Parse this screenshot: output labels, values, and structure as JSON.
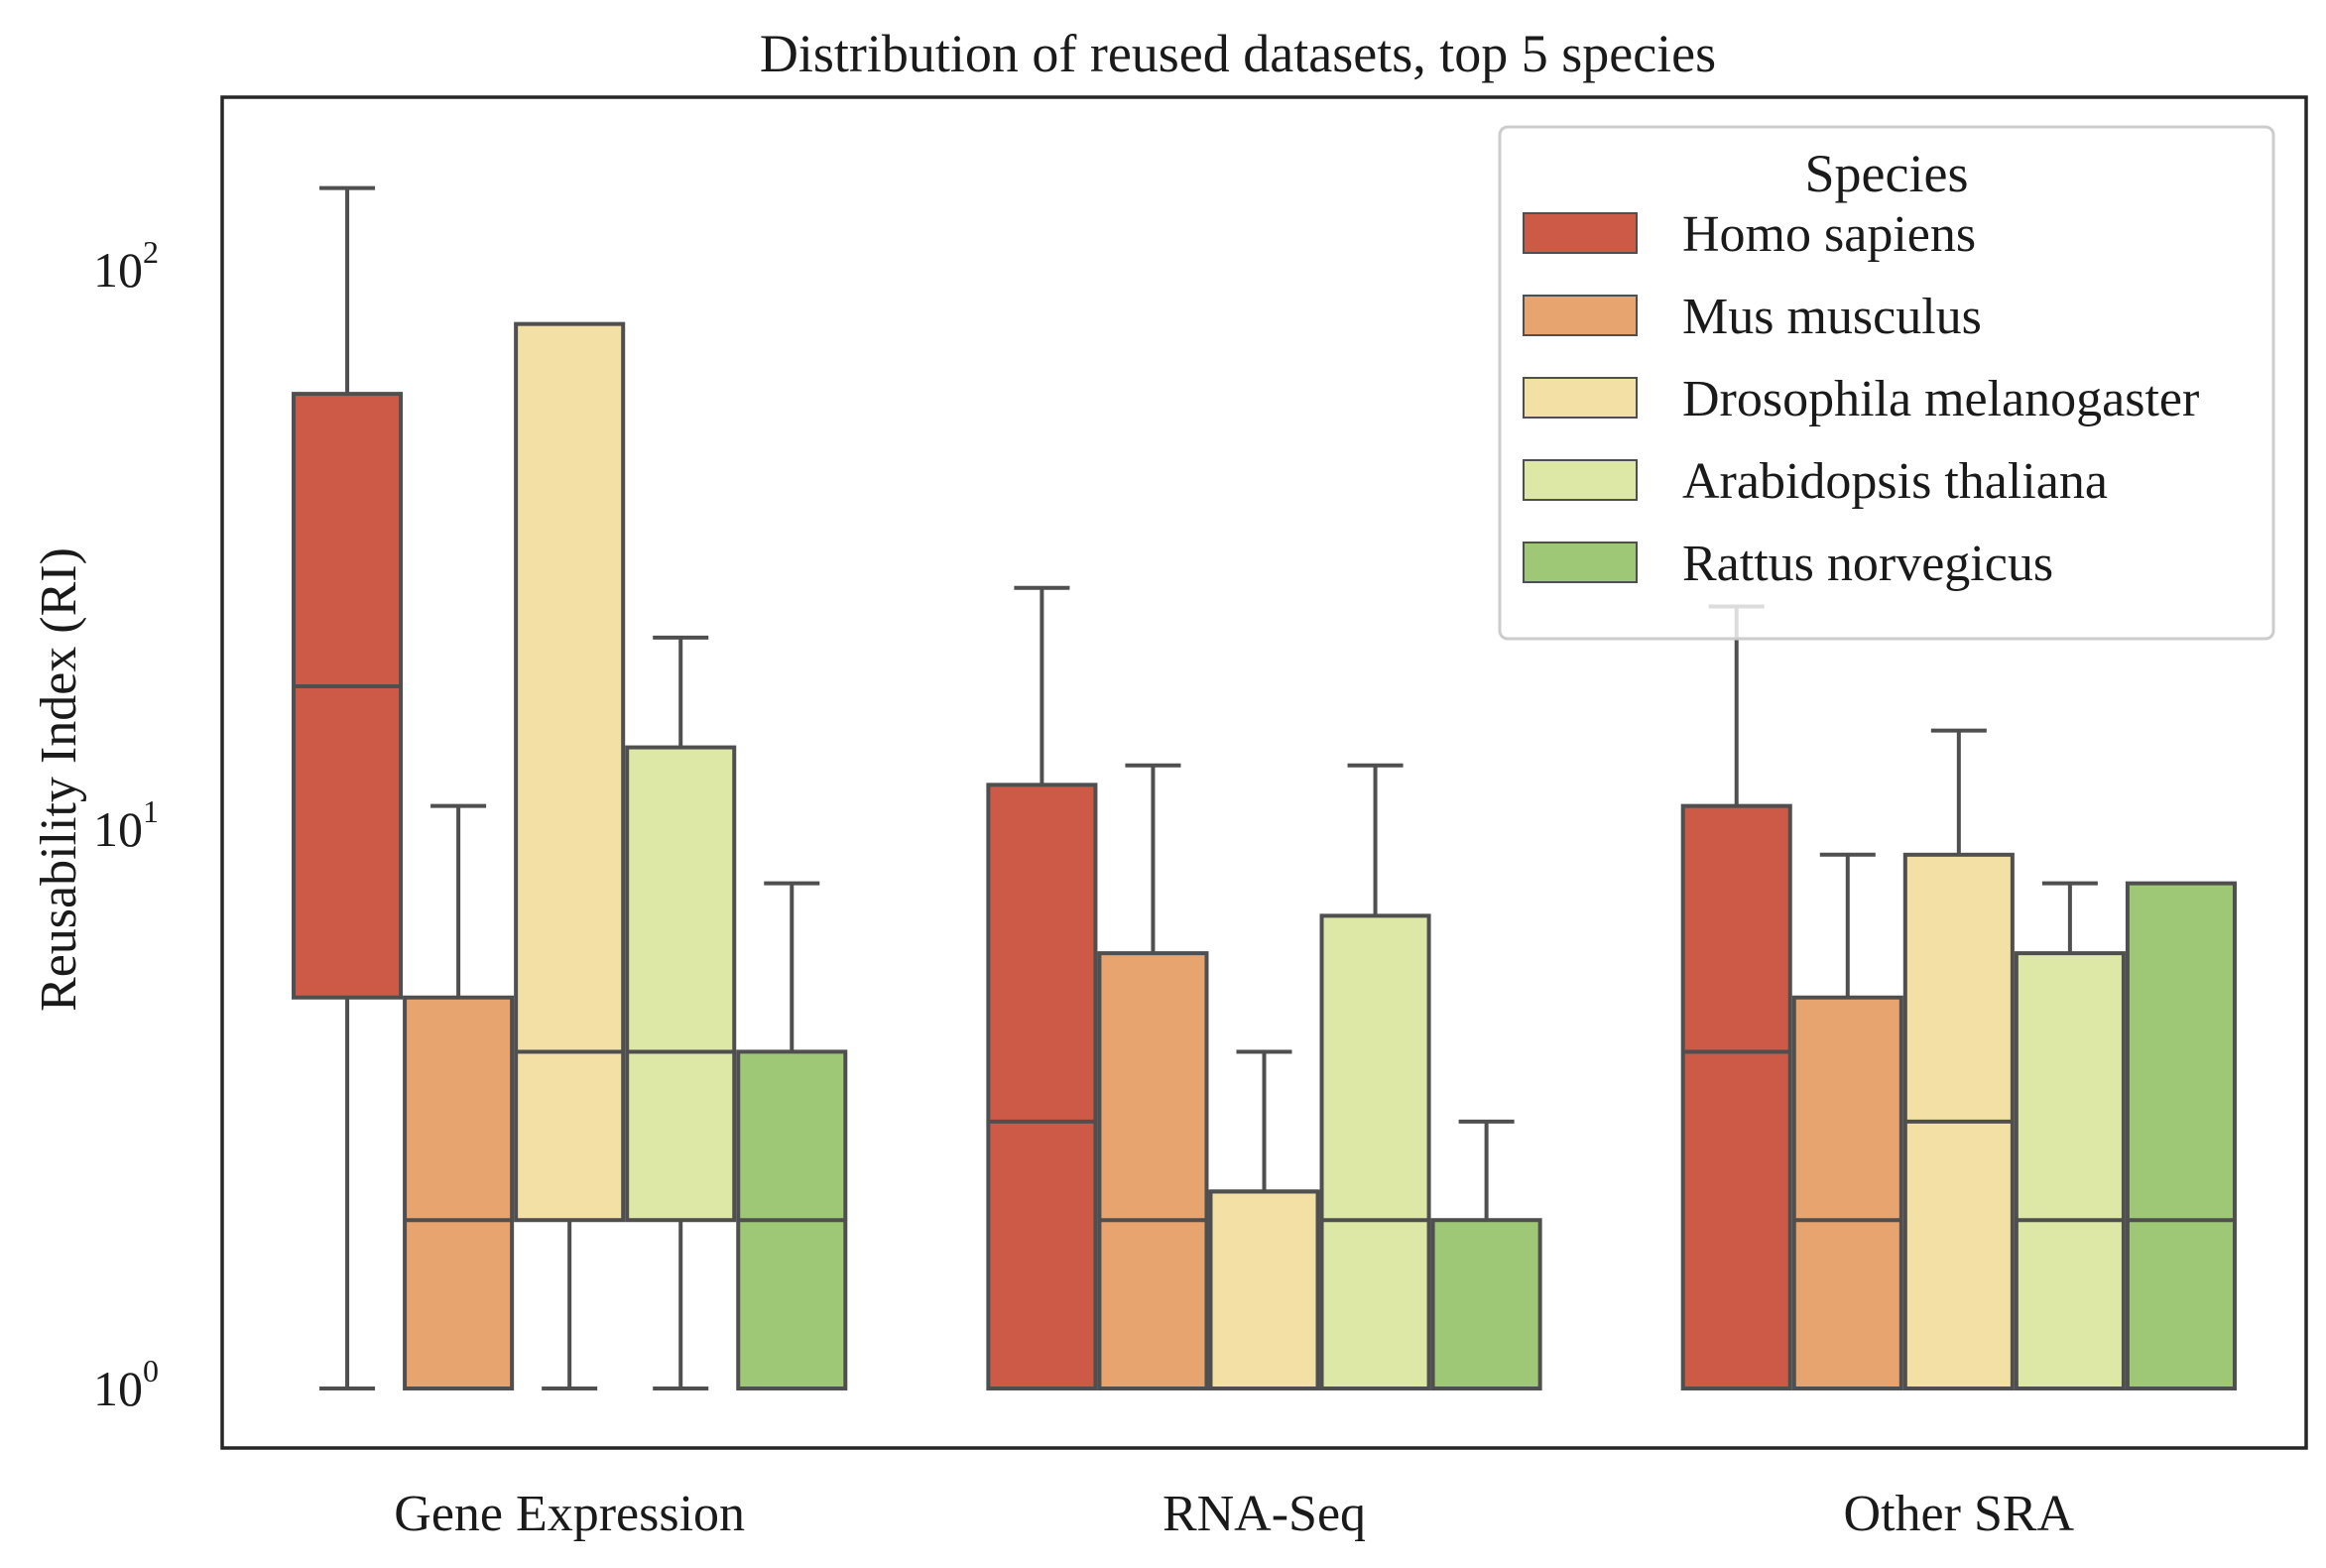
{
  "chart_data": {
    "type": "box",
    "title": "Distribution of reused datasets, top 5 species",
    "ylabel": "Reusability Index (RI)",
    "xlabel": "",
    "yscale": "log",
    "ylim": [
      0.8,
      200
    ],
    "yticks": [
      {
        "value": 1,
        "base": "10",
        "exp": "0"
      },
      {
        "value": 10,
        "base": "10",
        "exp": "1"
      },
      {
        "value": 100,
        "base": "10",
        "exp": "2"
      }
    ],
    "grid": false,
    "categories": [
      "Gene Expression",
      "RNA-Seq",
      "Other SRA"
    ],
    "legend": {
      "title": "Species",
      "placement": "top-right"
    },
    "series": [
      {
        "name": "Homo sapiens",
        "color": "#cd5947",
        "boxes": [
          {
            "whislo": 1,
            "q1": 5,
            "med": 18,
            "q3": 60,
            "whishi": 140
          },
          {
            "whislo": 1,
            "q1": 1,
            "med": 3,
            "q3": 12,
            "whishi": 27
          },
          {
            "whislo": 1,
            "q1": 1,
            "med": 4,
            "q3": 11,
            "whishi": 25
          }
        ]
      },
      {
        "name": "Mus musculus",
        "color": "#e8a46e",
        "boxes": [
          {
            "whislo": 1,
            "q1": 1,
            "med": 2,
            "q3": 5,
            "whishi": 11
          },
          {
            "whislo": 1,
            "q1": 1,
            "med": 2,
            "q3": 6,
            "whishi": 13
          },
          {
            "whislo": 1,
            "q1": 1,
            "med": 2,
            "q3": 5,
            "whishi": 9
          }
        ]
      },
      {
        "name": "Drosophila melanogaster",
        "color": "#f2e0a5",
        "boxes": [
          {
            "whislo": 1,
            "q1": 2,
            "med": 4,
            "q3": 80,
            "whishi": 80
          },
          {
            "whislo": 1,
            "q1": 1,
            "med": 2.25,
            "q3": 2.25,
            "whishi": 4
          },
          {
            "whislo": 1,
            "q1": 1,
            "med": 3,
            "q3": 9,
            "whishi": 15
          }
        ]
      },
      {
        "name": "Arabidopsis thaliana",
        "color": "#dde8a6",
        "boxes": [
          {
            "whislo": 1,
            "q1": 2,
            "med": 4,
            "q3": 14,
            "whishi": 22
          },
          {
            "whislo": 1,
            "q1": 1,
            "med": 2,
            "q3": 7,
            "whishi": 13
          },
          {
            "whislo": 1,
            "q1": 1,
            "med": 2,
            "q3": 6,
            "whishi": 8
          }
        ]
      },
      {
        "name": "Rattus norvegicus",
        "color": "#9fc876",
        "boxes": [
          {
            "whislo": 1,
            "q1": 1,
            "med": 2,
            "q3": 4,
            "whishi": 8
          },
          {
            "whislo": 1,
            "q1": 1,
            "med": 1,
            "q3": 2,
            "whishi": 3
          },
          {
            "whislo": 1,
            "q1": 1,
            "med": 2,
            "q3": 8,
            "whishi": 8
          }
        ]
      }
    ]
  }
}
